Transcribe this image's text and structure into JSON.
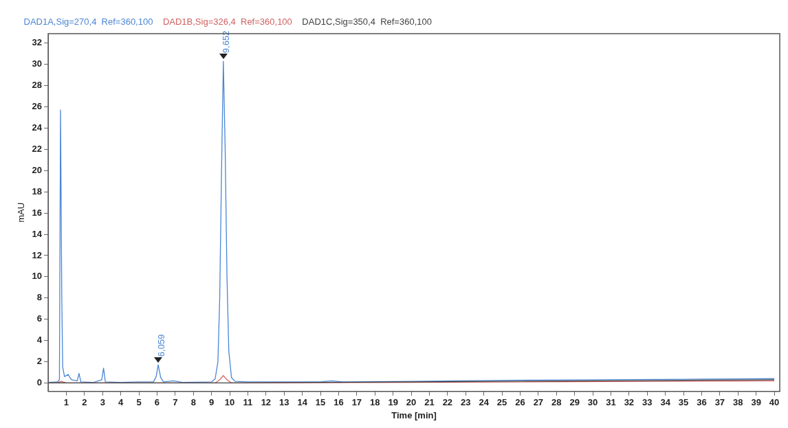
{
  "chart_data": {
    "type": "line",
    "xlabel": "Time [min]",
    "ylabel": "mAU",
    "xlim": [
      0,
      40.3
    ],
    "ylim": [
      -0.8,
      32.9
    ],
    "xticks": [
      1,
      2,
      3,
      4,
      5,
      6,
      7,
      8,
      9,
      10,
      11,
      12,
      13,
      14,
      15,
      16,
      17,
      18,
      19,
      20,
      21,
      22,
      23,
      24,
      25,
      26,
      27,
      28,
      29,
      30,
      31,
      32,
      33,
      34,
      35,
      36,
      37,
      38,
      39,
      40
    ],
    "yticks": [
      0,
      2,
      4,
      6,
      8,
      10,
      12,
      14,
      16,
      18,
      20,
      22,
      24,
      26,
      28,
      30,
      32
    ],
    "grid": false,
    "legend": "top left",
    "marker": "none",
    "line_style": "solid",
    "annotations": [
      {
        "text": "9,652",
        "x": 9.652,
        "y": 30.3
      },
      {
        "text": "6,059",
        "x": 6.059,
        "y": 1.7
      }
    ],
    "series": [
      {
        "name": "DAD1C,Sig=350,4  Ref=360,100",
        "color": "#404040",
        "x": [
          0,
          0.6,
          1,
          5,
          10,
          15,
          20,
          25,
          30,
          35,
          40
        ],
        "values": [
          0,
          0.02,
          0,
          0,
          0,
          0.05,
          0.1,
          0.15,
          0.2,
          0.25,
          0.3
        ]
      },
      {
        "name": "DAD1B,Sig=326,4  Ref=360,100",
        "color": "#d06060",
        "x": [
          0,
          0.5,
          0.7,
          1,
          9.2,
          9.45,
          9.65,
          9.85,
          10.1,
          20,
          40
        ],
        "values": [
          0,
          0,
          0.15,
          0,
          0,
          0.3,
          0.7,
          0.3,
          0,
          0.05,
          0.2
        ]
      },
      {
        "name": "DAD1A,Sig=270,4  Ref=360,100",
        "color": "#4a86d4",
        "x": [
          0,
          0.5,
          0.62,
          0.68,
          0.75,
          0.8,
          0.9,
          1.0,
          1.1,
          1.2,
          1.3,
          1.6,
          1.7,
          1.8,
          2.5,
          2.95,
          3.05,
          3.15,
          4,
          5,
          5.8,
          5.95,
          6.06,
          6.2,
          6.35,
          6.9,
          7.1,
          7.4,
          9.0,
          9.2,
          9.35,
          9.45,
          9.55,
          9.65,
          9.75,
          9.85,
          9.95,
          10.1,
          10.3,
          11,
          15,
          15.6,
          16.2,
          20,
          25,
          30,
          35,
          40
        ],
        "values": [
          0.05,
          0.1,
          0.3,
          25.7,
          8,
          1.5,
          0.6,
          0.7,
          0.8,
          0.5,
          0.3,
          0.2,
          0.9,
          0.1,
          0.05,
          0.3,
          1.4,
          0.1,
          0.05,
          0.1,
          0.1,
          0.6,
          1.7,
          0.5,
          0.1,
          0.2,
          0.15,
          0.05,
          0.1,
          0.4,
          2,
          8,
          20,
          30.3,
          22,
          10,
          3,
          0.5,
          0.15,
          0.1,
          0.1,
          0.2,
          0.1,
          0.15,
          0.25,
          0.3,
          0.35,
          0.4
        ]
      }
    ]
  }
}
